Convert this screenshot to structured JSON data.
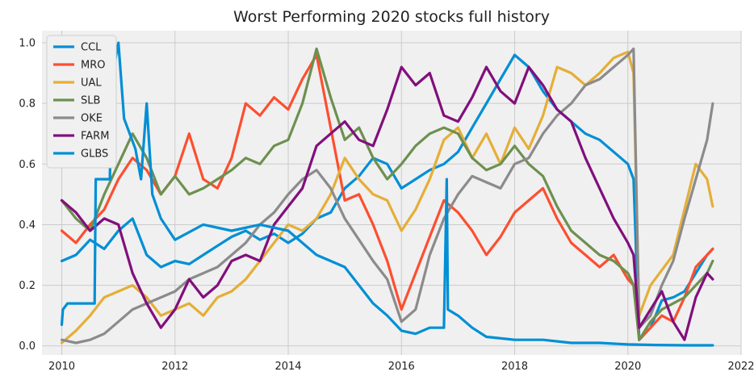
{
  "chart_data": {
    "type": "line",
    "title": "Worst Performing 2020 stocks full history",
    "xlabel": "",
    "ylabel": "",
    "xlim": [
      2009.65,
      2022.0
    ],
    "ylim": [
      -0.03,
      1.04
    ],
    "xticks": [
      2010,
      2012,
      2014,
      2016,
      2018,
      2020,
      2022
    ],
    "xtick_labels": [
      "2010",
      "2012",
      "2014",
      "2016",
      "2018",
      "2020",
      "2022"
    ],
    "yticks": [
      0.0,
      0.2,
      0.4,
      0.6,
      0.8,
      1.0
    ],
    "ytick_labels": [
      "0.0",
      "0.2",
      "0.4",
      "0.6",
      "0.8",
      "1.0"
    ],
    "grid": true,
    "legend_position": "top-left",
    "background": "#f0f0f0",
    "series": [
      {
        "name": "CCL",
        "color": "#008fd5",
        "x": [
          2010.0,
          2010.25,
          2010.5,
          2010.75,
          2011.0,
          2011.25,
          2011.5,
          2011.75,
          2012.0,
          2012.25,
          2012.5,
          2012.75,
          2013.0,
          2013.25,
          2013.5,
          2013.75,
          2014.0,
          2014.25,
          2014.5,
          2014.75,
          2015.0,
          2015.25,
          2015.5,
          2015.75,
          2016.0,
          2016.25,
          2016.5,
          2016.75,
          2017.0,
          2017.25,
          2017.5,
          2017.75,
          2018.0,
          2018.25,
          2018.5,
          2018.75,
          2019.0,
          2019.25,
          2019.5,
          2019.75,
          2020.0,
          2020.1,
          2020.2,
          2020.4,
          2020.6,
          2020.8,
          2021.0,
          2021.2,
          2021.4,
          2021.5
        ],
        "values": [
          0.28,
          0.3,
          0.35,
          0.32,
          0.38,
          0.42,
          0.3,
          0.26,
          0.28,
          0.27,
          0.3,
          0.33,
          0.36,
          0.38,
          0.35,
          0.37,
          0.34,
          0.37,
          0.42,
          0.44,
          0.52,
          0.56,
          0.62,
          0.6,
          0.52,
          0.55,
          0.58,
          0.6,
          0.64,
          0.72,
          0.8,
          0.88,
          0.96,
          0.92,
          0.84,
          0.78,
          0.74,
          0.7,
          0.68,
          0.64,
          0.6,
          0.55,
          0.02,
          0.06,
          0.15,
          0.16,
          0.18,
          0.24,
          0.3,
          0.32
        ]
      },
      {
        "name": "MRO",
        "color": "#fc4f30",
        "x": [
          2010.0,
          2010.25,
          2010.5,
          2010.75,
          2011.0,
          2011.25,
          2011.5,
          2011.75,
          2012.0,
          2012.25,
          2012.5,
          2012.75,
          2013.0,
          2013.25,
          2013.5,
          2013.75,
          2014.0,
          2014.25,
          2014.5,
          2014.75,
          2015.0,
          2015.25,
          2015.5,
          2015.75,
          2016.0,
          2016.25,
          2016.5,
          2016.75,
          2017.0,
          2017.25,
          2017.5,
          2017.75,
          2018.0,
          2018.25,
          2018.5,
          2018.75,
          2019.0,
          2019.25,
          2019.5,
          2019.75,
          2020.0,
          2020.1,
          2020.2,
          2020.4,
          2020.6,
          2020.8,
          2021.0,
          2021.2,
          2021.4,
          2021.5
        ],
        "values": [
          0.38,
          0.34,
          0.4,
          0.45,
          0.55,
          0.62,
          0.58,
          0.5,
          0.56,
          0.7,
          0.55,
          0.52,
          0.62,
          0.8,
          0.76,
          0.82,
          0.78,
          0.88,
          0.96,
          0.72,
          0.48,
          0.5,
          0.4,
          0.28,
          0.12,
          0.24,
          0.36,
          0.48,
          0.44,
          0.38,
          0.3,
          0.36,
          0.44,
          0.48,
          0.52,
          0.42,
          0.34,
          0.3,
          0.26,
          0.3,
          0.22,
          0.2,
          0.02,
          0.06,
          0.1,
          0.08,
          0.16,
          0.26,
          0.3,
          0.32
        ]
      },
      {
        "name": "UAL",
        "color": "#e5ae38",
        "x": [
          2010.0,
          2010.25,
          2010.5,
          2010.75,
          2011.0,
          2011.25,
          2011.5,
          2011.75,
          2012.0,
          2012.25,
          2012.5,
          2012.75,
          2013.0,
          2013.25,
          2013.5,
          2013.75,
          2014.0,
          2014.25,
          2014.5,
          2014.75,
          2015.0,
          2015.25,
          2015.5,
          2015.75,
          2016.0,
          2016.25,
          2016.5,
          2016.75,
          2017.0,
          2017.25,
          2017.5,
          2017.75,
          2018.0,
          2018.25,
          2018.5,
          2018.75,
          2019.0,
          2019.25,
          2019.5,
          2019.75,
          2020.0,
          2020.1,
          2020.2,
          2020.4,
          2020.6,
          2020.8,
          2021.0,
          2021.2,
          2021.4,
          2021.5
        ],
        "values": [
          0.01,
          0.05,
          0.1,
          0.16,
          0.18,
          0.2,
          0.16,
          0.1,
          0.12,
          0.14,
          0.1,
          0.16,
          0.18,
          0.22,
          0.28,
          0.34,
          0.4,
          0.38,
          0.42,
          0.5,
          0.62,
          0.55,
          0.5,
          0.48,
          0.38,
          0.45,
          0.55,
          0.68,
          0.72,
          0.62,
          0.7,
          0.6,
          0.72,
          0.65,
          0.76,
          0.92,
          0.9,
          0.86,
          0.9,
          0.95,
          0.97,
          0.9,
          0.1,
          0.2,
          0.25,
          0.3,
          0.45,
          0.6,
          0.55,
          0.46
        ]
      },
      {
        "name": "SLB",
        "color": "#6d904f",
        "x": [
          2010.0,
          2010.25,
          2010.5,
          2010.75,
          2011.0,
          2011.25,
          2011.5,
          2011.75,
          2012.0,
          2012.25,
          2012.5,
          2012.75,
          2013.0,
          2013.25,
          2013.5,
          2013.75,
          2014.0,
          2014.25,
          2014.5,
          2014.75,
          2015.0,
          2015.25,
          2015.5,
          2015.75,
          2016.0,
          2016.25,
          2016.5,
          2016.75,
          2017.0,
          2017.25,
          2017.5,
          2017.75,
          2018.0,
          2018.25,
          2018.5,
          2018.75,
          2019.0,
          2019.25,
          2019.5,
          2019.75,
          2020.0,
          2020.1,
          2020.2,
          2020.4,
          2020.6,
          2020.8,
          2021.0,
          2021.2,
          2021.4,
          2021.5
        ],
        "values": [
          0.48,
          0.42,
          0.38,
          0.5,
          0.6,
          0.7,
          0.62,
          0.5,
          0.56,
          0.5,
          0.52,
          0.55,
          0.58,
          0.62,
          0.6,
          0.66,
          0.68,
          0.8,
          0.98,
          0.82,
          0.68,
          0.72,
          0.62,
          0.55,
          0.6,
          0.66,
          0.7,
          0.72,
          0.7,
          0.62,
          0.58,
          0.6,
          0.66,
          0.6,
          0.56,
          0.46,
          0.38,
          0.34,
          0.3,
          0.28,
          0.24,
          0.2,
          0.02,
          0.08,
          0.12,
          0.14,
          0.16,
          0.2,
          0.24,
          0.28
        ]
      },
      {
        "name": "OKE",
        "color": "#8b8b8b",
        "x": [
          2010.0,
          2010.25,
          2010.5,
          2010.75,
          2011.0,
          2011.25,
          2011.5,
          2011.75,
          2012.0,
          2012.25,
          2012.5,
          2012.75,
          2013.0,
          2013.25,
          2013.5,
          2013.75,
          2014.0,
          2014.25,
          2014.5,
          2014.75,
          2015.0,
          2015.25,
          2015.5,
          2015.75,
          2016.0,
          2016.25,
          2016.5,
          2016.75,
          2017.0,
          2017.25,
          2017.5,
          2017.75,
          2018.0,
          2018.25,
          2018.5,
          2018.75,
          2019.0,
          2019.25,
          2019.5,
          2019.75,
          2020.0,
          2020.1,
          2020.2,
          2020.4,
          2020.6,
          2020.8,
          2021.0,
          2021.2,
          2021.4,
          2021.5
        ],
        "values": [
          0.02,
          0.01,
          0.02,
          0.04,
          0.08,
          0.12,
          0.14,
          0.16,
          0.18,
          0.22,
          0.24,
          0.26,
          0.3,
          0.34,
          0.4,
          0.44,
          0.5,
          0.55,
          0.58,
          0.52,
          0.42,
          0.35,
          0.28,
          0.22,
          0.08,
          0.12,
          0.3,
          0.42,
          0.5,
          0.56,
          0.54,
          0.52,
          0.6,
          0.62,
          0.7,
          0.76,
          0.8,
          0.86,
          0.88,
          0.92,
          0.96,
          0.98,
          0.06,
          0.1,
          0.2,
          0.28,
          0.42,
          0.55,
          0.68,
          0.8
        ]
      },
      {
        "name": "FARM",
        "color": "#810f7c",
        "x": [
          2010.0,
          2010.25,
          2010.5,
          2010.75,
          2011.0,
          2011.25,
          2011.5,
          2011.75,
          2012.0,
          2012.25,
          2012.5,
          2012.75,
          2013.0,
          2013.25,
          2013.5,
          2013.75,
          2014.0,
          2014.25,
          2014.5,
          2014.75,
          2015.0,
          2015.25,
          2015.5,
          2015.75,
          2016.0,
          2016.25,
          2016.5,
          2016.75,
          2017.0,
          2017.25,
          2017.5,
          2017.75,
          2018.0,
          2018.25,
          2018.5,
          2018.75,
          2019.0,
          2019.25,
          2019.5,
          2019.75,
          2020.0,
          2020.1,
          2020.2,
          2020.4,
          2020.6,
          2020.8,
          2021.0,
          2021.2,
          2021.4,
          2021.5
        ],
        "values": [
          0.48,
          0.44,
          0.38,
          0.42,
          0.4,
          0.24,
          0.14,
          0.06,
          0.12,
          0.22,
          0.16,
          0.2,
          0.28,
          0.3,
          0.28,
          0.4,
          0.46,
          0.52,
          0.66,
          0.7,
          0.74,
          0.68,
          0.66,
          0.78,
          0.92,
          0.86,
          0.9,
          0.76,
          0.74,
          0.82,
          0.92,
          0.84,
          0.8,
          0.92,
          0.86,
          0.78,
          0.74,
          0.62,
          0.52,
          0.42,
          0.34,
          0.3,
          0.06,
          0.12,
          0.18,
          0.08,
          0.02,
          0.16,
          0.24,
          0.22
        ]
      },
      {
        "name": "GLBS",
        "color": "#008fd5",
        "x": [
          2010.0,
          2010.02,
          2010.1,
          2010.2,
          2010.4,
          2010.58,
          2010.6,
          2010.85,
          2010.87,
          2010.95,
          2011.0,
          2011.1,
          2011.2,
          2011.3,
          2011.4,
          2011.5,
          2011.6,
          2011.75,
          2012.0,
          2012.5,
          2013.0,
          2013.5,
          2014.0,
          2014.5,
          2015.0,
          2015.25,
          2015.5,
          2015.75,
          2016.0,
          2016.25,
          2016.5,
          2016.75,
          2016.8,
          2016.82,
          2017.0,
          2017.25,
          2017.5,
          2018.0,
          2018.5,
          2019.0,
          2019.5,
          2020.0,
          2020.5,
          2021.0,
          2021.5
        ],
        "values": [
          0.07,
          0.12,
          0.14,
          0.14,
          0.14,
          0.14,
          0.55,
          0.55,
          0.78,
          0.95,
          1.0,
          0.75,
          0.7,
          0.65,
          0.55,
          0.8,
          0.5,
          0.42,
          0.35,
          0.4,
          0.38,
          0.4,
          0.38,
          0.3,
          0.26,
          0.2,
          0.14,
          0.1,
          0.05,
          0.04,
          0.06,
          0.06,
          0.55,
          0.12,
          0.1,
          0.06,
          0.03,
          0.02,
          0.02,
          0.01,
          0.01,
          0.005,
          0.003,
          0.002,
          0.002
        ]
      }
    ]
  }
}
